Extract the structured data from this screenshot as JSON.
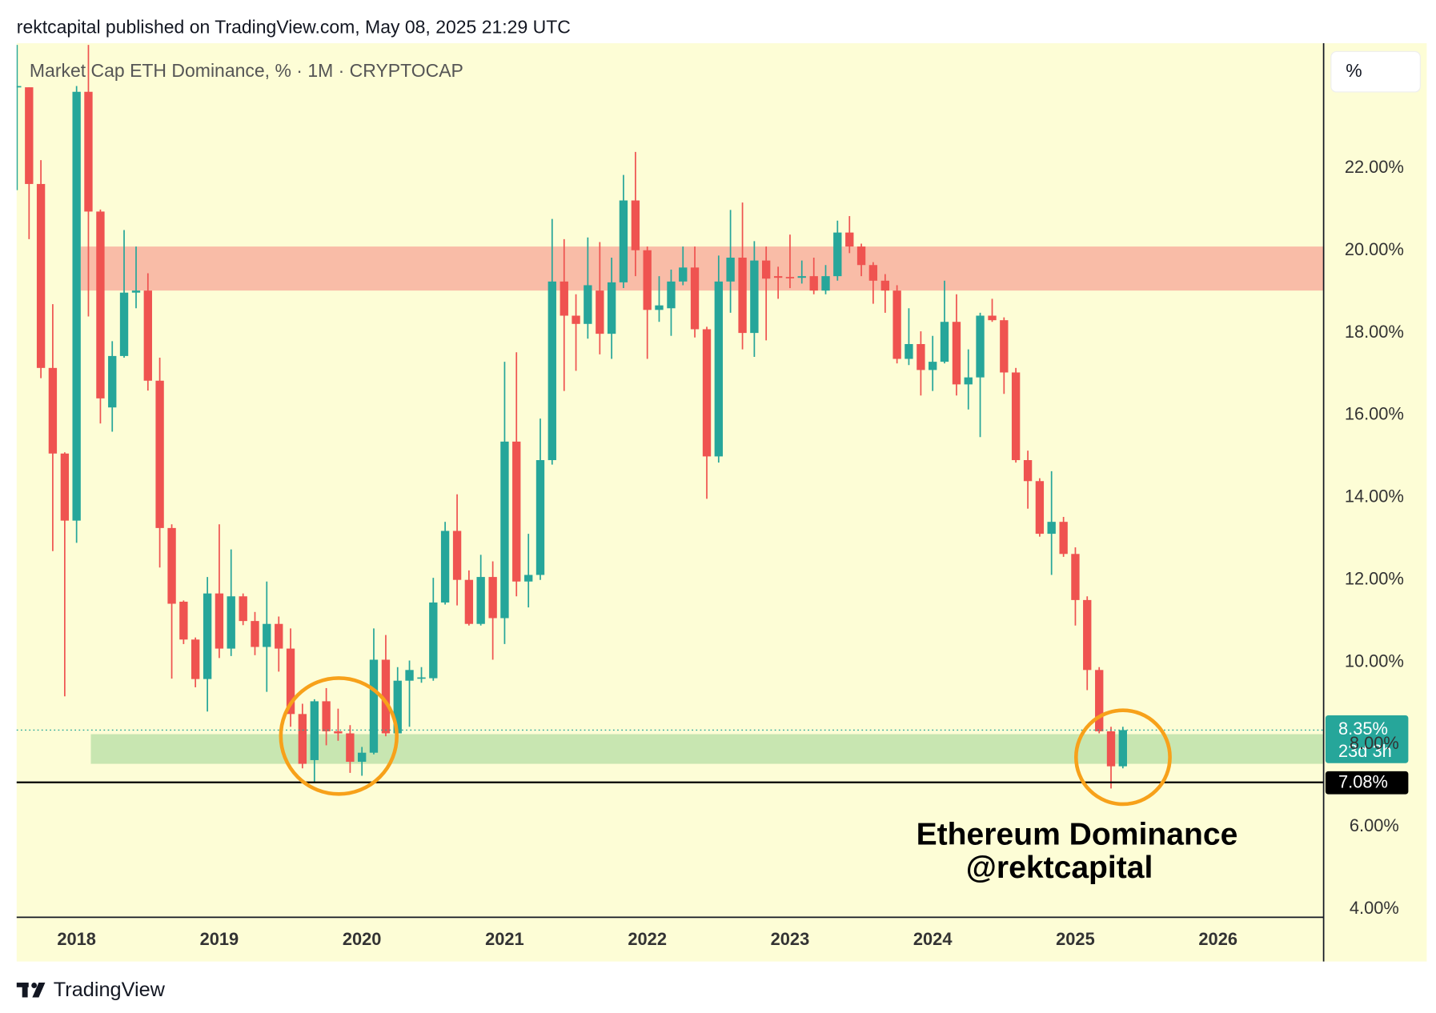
{
  "header": {
    "publisher": "rektcapital published on TradingView.com, May 08, 2025 21:29 UTC"
  },
  "scale_label": "%",
  "footer": "TradingView",
  "chart_data": {
    "type": "candlestick",
    "title": "Market Cap ETH Dominance, % · 1M · CRYPTOCAP",
    "up_color": "#26a69a",
    "down_color": "#ef5350",
    "x": [
      2017.583,
      2017.667,
      2017.75,
      2017.833,
      2017.917,
      2018,
      2018.083,
      2018.167,
      2018.25,
      2018.333,
      2018.417,
      2018.5,
      2018.583,
      2018.667,
      2018.75,
      2018.833,
      2018.917,
      2019,
      2019.083,
      2019.167,
      2019.25,
      2019.333,
      2019.417,
      2019.5,
      2019.583,
      2019.667,
      2019.75,
      2019.833,
      2019.917,
      2020,
      2020.083,
      2020.167,
      2020.25,
      2020.333,
      2020.417,
      2020.5,
      2020.583,
      2020.667,
      2020.75,
      2020.833,
      2020.917,
      2021,
      2021.083,
      2021.167,
      2021.25,
      2021.333,
      2021.417,
      2021.5,
      2021.583,
      2021.667,
      2021.75,
      2021.833,
      2021.917,
      2022,
      2022.083,
      2022.167,
      2022.25,
      2022.333,
      2022.417,
      2022.5,
      2022.583,
      2022.667,
      2022.75,
      2022.833,
      2022.917,
      2023,
      2023.083,
      2023.167,
      2023.25,
      2023.333,
      2023.417,
      2023.5,
      2023.583,
      2023.667,
      2023.75,
      2023.833,
      2023.917,
      2024,
      2024.083,
      2024.167,
      2024.25,
      2024.333,
      2024.417,
      2024.5,
      2024.583,
      2024.667,
      2024.75,
      2024.833,
      2024.917,
      2025,
      2025.083,
      2025.167,
      2025.25,
      2025.333
    ],
    "open": [
      23.97,
      23.97,
      21.62,
      17.15,
      15.07,
      13.44,
      23.86,
      20.95,
      16.19,
      17.44,
      18.98,
      19.03,
      16.84,
      13.26,
      11.47,
      10.55,
      9.59,
      11.67,
      10.33,
      11.6,
      11.0,
      10.37,
      10.93,
      10.33,
      8.74,
      7.62,
      9.05,
      8.32,
      8.27,
      7.58,
      7.8,
      10.06,
      8.27,
      9.55,
      9.61,
      9.61,
      11.45,
      13.19,
      12.0,
      10.93,
      12.07,
      11.07,
      15.36,
      11.96,
      12.12,
      14.91,
      19.25,
      18.42,
      18.22,
      19.03,
      17.98,
      19.23,
      21.22,
      20.01,
      18.56,
      18.6,
      19.25,
      19.59,
      18.09,
      15.0,
      19.25,
      19.83,
      18.0,
      19.76,
      19.38,
      19.36,
      19.34,
      19.38,
      19.03,
      19.38,
      20.44,
      20.1,
      19.65,
      19.27,
      19.03,
      17.37,
      17.73,
      17.1,
      17.3,
      18.27,
      16.75,
      16.92,
      18.42,
      18.31,
      17.04,
      14.91,
      14.4,
      13.12,
      13.41,
      12.63,
      11.51,
      9.81,
      8.32,
      7.47
    ],
    "high": [
      25.0,
      23.97,
      22.2,
      18.7,
      15.1,
      24.0,
      25.0,
      21.0,
      17.8,
      20.5,
      20.1,
      19.45,
      17.4,
      13.35,
      11.5,
      10.6,
      12.07,
      13.35,
      12.74,
      11.67,
      11.22,
      11.96,
      11.11,
      10.82,
      8.99,
      9.1,
      9.37,
      8.87,
      8.47,
      7.94,
      10.82,
      10.66,
      9.88,
      10.04,
      9.88,
      12.05,
      13.41,
      14.08,
      12.23,
      12.61,
      12.45,
      17.3,
      17.53,
      13.12,
      15.92,
      20.77,
      20.28,
      18.94,
      20.32,
      20.21,
      19.83,
      21.84,
      22.4,
      20.1,
      19.38,
      19.54,
      20.1,
      20.1,
      18.15,
      19.88,
      20.99,
      21.17,
      20.23,
      20.1,
      19.61,
      20.39,
      19.76,
      19.83,
      19.65,
      20.73,
      20.84,
      20.17,
      19.72,
      19.43,
      19.16,
      18.6,
      18.04,
      17.93,
      19.27,
      18.94,
      17.6,
      18.49,
      18.83,
      18.38,
      17.15,
      15.14,
      14.47,
      14.64,
      13.53,
      12.79,
      11.6,
      9.88,
      8.43,
      8.43
    ],
    "low": [
      21.47,
      20.28,
      16.9,
      12.7,
      9.17,
      12.9,
      18.4,
      15.8,
      15.6,
      17.4,
      18.6,
      16.6,
      12.3,
      9.6,
      10.44,
      9.39,
      8.8,
      10.1,
      10.15,
      10.9,
      10.17,
      9.28,
      9.77,
      8.43,
      7.42,
      7.09,
      7.98,
      8.09,
      7.31,
      7.24,
      7.76,
      8.2,
      8.2,
      8.43,
      9.5,
      9.55,
      11.4,
      11.38,
      10.89,
      10.89,
      10.06,
      10.44,
      11.6,
      11.33,
      12.0,
      14.8,
      16.59,
      17.08,
      17.86,
      17.48,
      17.37,
      19.09,
      19.38,
      17.37,
      18.27,
      17.93,
      19.16,
      17.89,
      13.97,
      14.85,
      18.49,
      17.6,
      17.42,
      17.82,
      18.83,
      19.09,
      19.2,
      18.94,
      18.94,
      19.27,
      19.94,
      19.38,
      18.71,
      18.49,
      17.26,
      17.22,
      16.48,
      16.59,
      17.26,
      16.48,
      16.14,
      15.47,
      18.27,
      16.52,
      14.85,
      13.73,
      13.05,
      12.12,
      12.56,
      10.89,
      9.32,
      8.27,
      6.93,
      7.42
    ],
    "close": [
      24.0,
      21.62,
      17.15,
      15.07,
      13.44,
      23.86,
      20.95,
      16.41,
      17.44,
      18.98,
      19.03,
      16.84,
      13.26,
      11.42,
      10.55,
      9.59,
      11.67,
      10.33,
      11.6,
      11.0,
      10.37,
      10.93,
      10.33,
      8.74,
      7.53,
      9.05,
      8.32,
      8.27,
      7.58,
      7.8,
      10.06,
      8.27,
      9.55,
      9.81,
      9.63,
      11.45,
      13.19,
      12.0,
      10.93,
      12.07,
      11.07,
      15.36,
      11.96,
      12.12,
      14.91,
      19.25,
      18.42,
      18.22,
      19.16,
      17.98,
      19.23,
      21.22,
      20.01,
      18.56,
      18.67,
      19.25,
      19.59,
      18.09,
      15.0,
      19.25,
      19.83,
      18.0,
      19.76,
      19.32,
      19.34,
      19.34,
      19.38,
      19.03,
      19.38,
      20.44,
      20.1,
      19.65,
      19.27,
      19.03,
      17.37,
      17.73,
      17.1,
      17.3,
      18.27,
      16.75,
      16.92,
      18.42,
      18.31,
      17.04,
      14.91,
      14.4,
      13.12,
      13.41,
      12.63,
      11.51,
      9.81,
      8.32,
      7.47,
      8.35
    ],
    "xlim": [
      2017.58,
      2026.74
    ],
    "xticks": [
      2018,
      2019,
      2020,
      2021,
      2022,
      2023,
      2024,
      2025,
      2026
    ],
    "ylim": [
      3.8,
      25.04
    ],
    "yticks": [
      {
        "value": 4,
        "label": "4.00%"
      },
      {
        "value": 6,
        "label": "6.00%"
      },
      {
        "value": 8,
        "label": "8.00%"
      },
      {
        "value": 10,
        "label": "10.00%"
      },
      {
        "value": 12,
        "label": "12.00%"
      },
      {
        "value": 14,
        "label": "14.00%"
      },
      {
        "value": 16,
        "label": "16.00%"
      },
      {
        "value": 18,
        "label": "18.00%"
      },
      {
        "value": 20,
        "label": "20.00%"
      },
      {
        "value": 22,
        "label": "22.00%"
      }
    ],
    "grid": false,
    "zones": [
      {
        "ylim": [
          19.03,
          20.1
        ],
        "x0": 2018.03,
        "color": "#f9bca7"
      },
      {
        "ylim": [
          7.53,
          8.25
        ],
        "x0": 2018.1,
        "color": "#c8e6b1"
      }
    ],
    "lines": [
      {
        "value": 7.08,
        "label": "7.08%",
        "color": "#000000"
      }
    ],
    "last": {
      "value": 8.35,
      "label": "8.35%",
      "countdown": "23d 3h",
      "color": "#26a69a"
    },
    "annotations": [
      "Ethereum Dominance",
      "@rektcapital"
    ]
  }
}
